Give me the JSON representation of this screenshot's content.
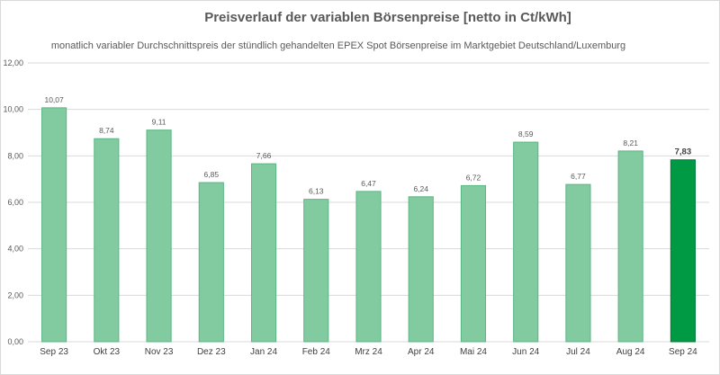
{
  "chart_data": {
    "type": "bar",
    "title": "Preisverlauf der variablen Börsenpreise [netto in Ct/kWh]",
    "subtitle": "monatlich variabler Durchschnittspreis der stündlich gehandelten EPEX Spot Börsenpreise im Marktgebiet Deutschland/Luxemburg",
    "categories": [
      "Sep 23",
      "Okt 23",
      "Nov 23",
      "Dez 23",
      "Jan 24",
      "Feb 24",
      "Mrz 24",
      "Apr 24",
      "Mai 24",
      "Jun 24",
      "Jul 24",
      "Aug 24",
      "Sep 24"
    ],
    "values": [
      10.07,
      8.74,
      9.11,
      6.85,
      7.66,
      6.13,
      6.47,
      6.24,
      6.72,
      8.59,
      6.77,
      8.21,
      7.83
    ],
    "value_labels": [
      "10,07",
      "8,74",
      "9,11",
      "6,85",
      "7,66",
      "6,13",
      "6,47",
      "6,24",
      "6,72",
      "8,59",
      "6,77",
      "8,21",
      "7,83"
    ],
    "ylim": [
      0,
      12
    ],
    "yticks": [
      0,
      2,
      4,
      6,
      8,
      10,
      12
    ],
    "ytick_labels": [
      "0,00",
      "2,00",
      "4,00",
      "6,00",
      "8,00",
      "10,00",
      "12,00"
    ],
    "grid": true,
    "highlight_index": 12,
    "colors": {
      "bar": "#82cba0",
      "bar_stroke": "#5bb584",
      "highlight": "#009a44",
      "highlight_stroke": "#007a35",
      "grid": "#d9d9d9"
    }
  }
}
